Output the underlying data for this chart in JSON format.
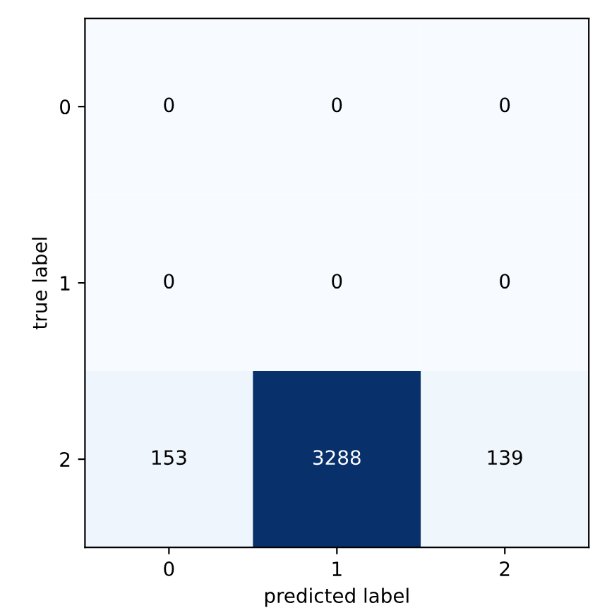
{
  "chart_data": {
    "type": "heatmap",
    "xlabel": "predicted label",
    "ylabel": "true label",
    "categories": [
      "0",
      "1",
      "2"
    ],
    "y_categories": [
      "0",
      "1",
      "2"
    ],
    "cells": [
      [
        0,
        0,
        0
      ],
      [
        0,
        0,
        0
      ],
      [
        153,
        3288,
        139
      ]
    ],
    "data_labels": true
  }
}
